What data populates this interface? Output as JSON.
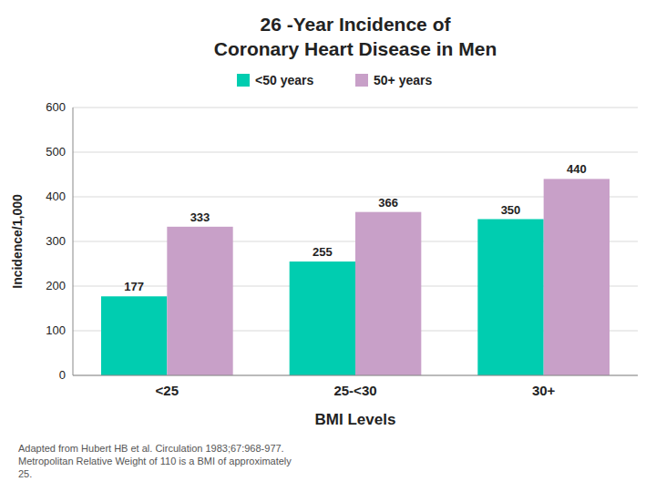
{
  "chart_data": {
    "type": "bar",
    "title": "26 -Year Incidence of",
    "subtitle": "Coronary Heart Disease in Men",
    "xlabel": "BMI Levels",
    "ylabel": "Incidence/1,000",
    "categories": [
      "<25",
      "25-<30",
      "30+"
    ],
    "series": [
      {
        "name": "<50 years",
        "color": "#00CDB0",
        "values": [
          177,
          255,
          350
        ]
      },
      {
        "name": "50+ years",
        "color": "#C8A0C8",
        "values": [
          333,
          366,
          440
        ]
      }
    ],
    "ylim": [
      0,
      600
    ],
    "yticks": [
      0,
      100,
      200,
      300,
      400,
      500,
      600
    ],
    "grid": true,
    "data_labels": true,
    "legend": "top",
    "annotations": [
      "Adapted from Hubert HB et al. Circulation 1983;67:968-977.",
      "Metropolitan Relative Weight of 110 is a BMI of approximately",
      "25."
    ]
  }
}
